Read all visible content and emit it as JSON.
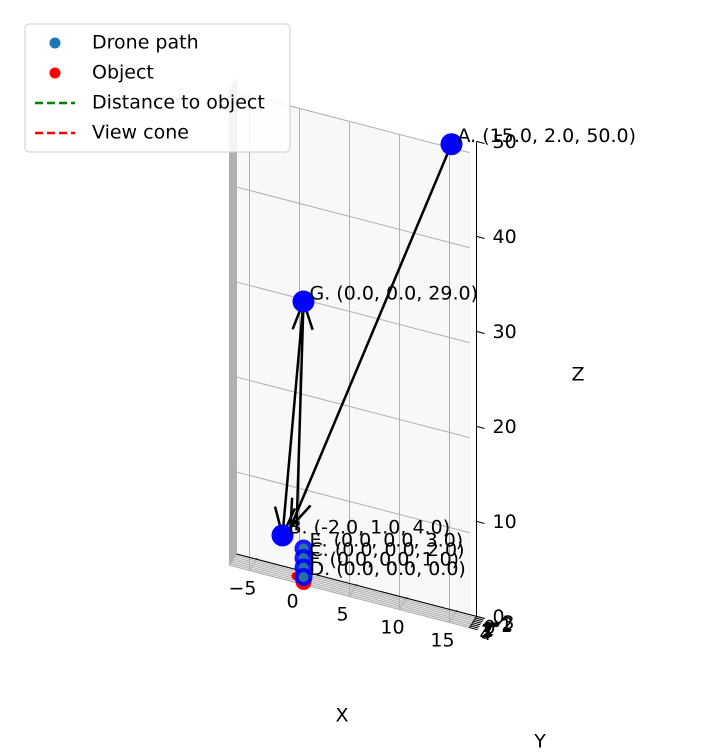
{
  "chart_data": {
    "type": "scatter",
    "projection": "3d",
    "grid": true,
    "legend_position": "top-left",
    "legend": [
      {
        "label": "Drone path",
        "kind": "marker",
        "color": "#1f77b4"
      },
      {
        "label": "Object",
        "kind": "marker",
        "color": "#ff0000"
      },
      {
        "label": "Distance to object",
        "kind": "dashed-line",
        "color": "#008000"
      },
      {
        "label": "View cone",
        "kind": "dashed-line",
        "color": "#ff0000"
      }
    ],
    "axes": {
      "x": {
        "label": "X",
        "ticks": [
          -5,
          0,
          5,
          10,
          15
        ]
      },
      "y": {
        "label": "Y",
        "ticks": [
          -3,
          -2,
          -1,
          0,
          1,
          2,
          3,
          4
        ],
        "tick_labels": [
          "-3",
          "-2",
          "-1",
          "0",
          "1",
          "2",
          "3",
          "4"
        ]
      },
      "z": {
        "label": "Z",
        "ticks": [
          0,
          10,
          20,
          30,
          40,
          50
        ]
      }
    },
    "points": [
      {
        "name": "A",
        "x": 15.0,
        "y": 2.0,
        "z": 50.0,
        "label": "A. (15.0, 2.0, 50.0)",
        "color": "#0000ff"
      },
      {
        "name": "G",
        "x": 0.0,
        "y": 0.0,
        "z": 29.0,
        "label": "G. (0.0, 0.0, 29.0)",
        "color": "#0000ff"
      },
      {
        "name": "B",
        "x": -2.0,
        "y": 1.0,
        "z": 4.0,
        "label": "B. (-2.0, 1.0, 4.0)",
        "color": "#0000ff"
      },
      {
        "name": "E",
        "x": 0.0,
        "y": 0.0,
        "z": 3.0,
        "label": "E. (0.0, 0.0, 3.0)",
        "color": "#0000ff"
      },
      {
        "name": "C",
        "x": 0.0,
        "y": 0.0,
        "z": 2.0,
        "label": "C. (0.0, 0.0, 2.0)",
        "color": "#0000ff"
      },
      {
        "name": "F",
        "x": 0.0,
        "y": 0.0,
        "z": 1.0,
        "label": "F. (0.0, 0.0, 1.0)",
        "color": "#0000ff"
      },
      {
        "name": "D",
        "x": 0.0,
        "y": 0.0,
        "z": 0.0,
        "label": "D. (0.0, 0.0, 0.0)",
        "color": "#0000ff"
      }
    ],
    "object": {
      "x": 0.0,
      "y": 0.0,
      "z": 0.0,
      "color": "#ff0000"
    },
    "arrows": [
      {
        "from": "A",
        "to": "B"
      },
      {
        "from": "G",
        "to": "B"
      },
      {
        "from": "B",
        "to": "G"
      }
    ]
  }
}
